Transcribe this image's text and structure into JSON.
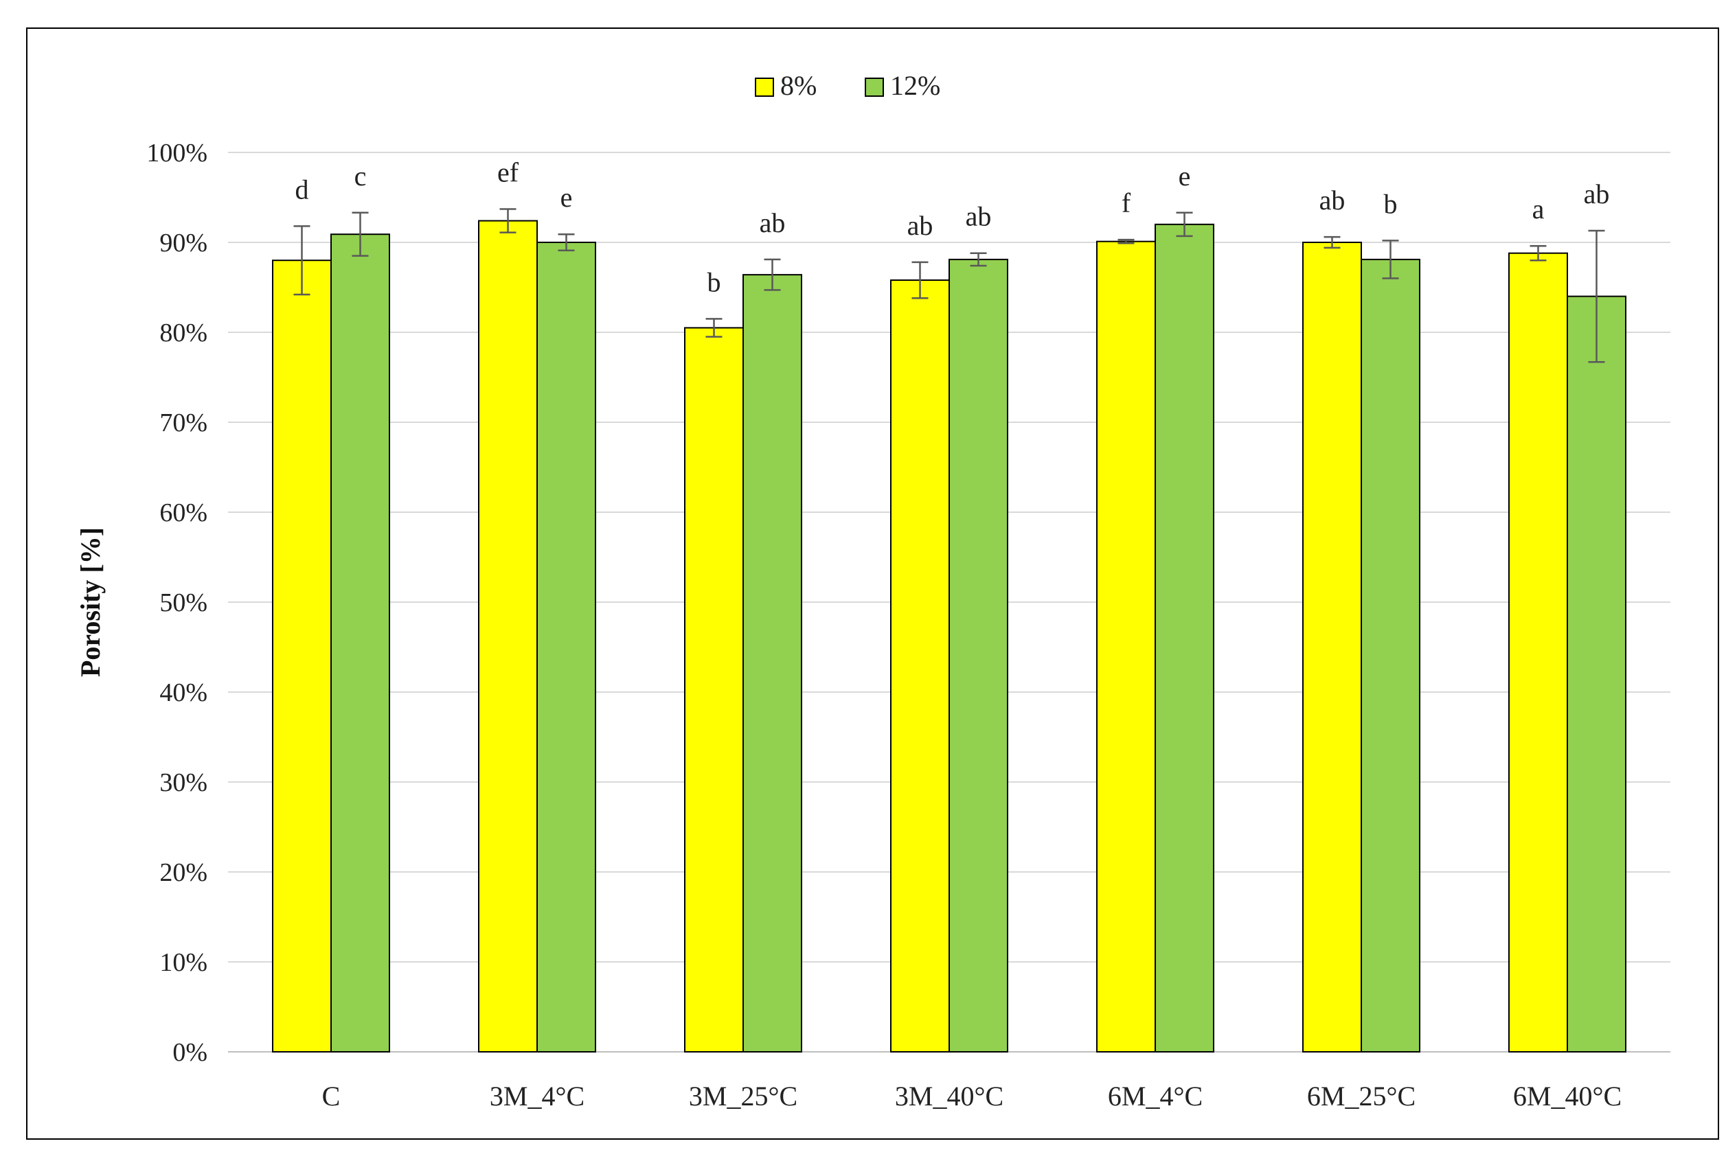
{
  "chart_data": {
    "type": "bar",
    "ylabel": "Porosity [%]",
    "xlabel": "",
    "ylim": [
      0,
      100
    ],
    "yticks": [
      "0%",
      "10%",
      "20%",
      "30%",
      "40%",
      "50%",
      "60%",
      "70%",
      "80%",
      "90%",
      "100%"
    ],
    "grid": true,
    "legend_position": "top-center",
    "categories": [
      "C",
      "3M_4°C",
      "3M_25°C",
      "3M_40°C",
      "6M_4°C",
      "6M_25°C",
      "6M_40°C"
    ],
    "series": [
      {
        "name": "8%",
        "color": "#FFFF00",
        "values": [
          88.0,
          92.4,
          80.5,
          85.8,
          90.1,
          90.0,
          88.8
        ],
        "errors": [
          3.8,
          1.3,
          1.0,
          2.0,
          0.2,
          0.6,
          0.8
        ],
        "letters": [
          "d",
          "ef",
          "b",
          "ab",
          "f",
          "ab",
          "a"
        ]
      },
      {
        "name": "12%",
        "color": "#92D050",
        "values": [
          90.9,
          90.0,
          86.4,
          88.1,
          92.0,
          88.1,
          84.0
        ],
        "errors": [
          2.4,
          0.9,
          1.7,
          0.7,
          1.3,
          2.1,
          7.3
        ],
        "letters": [
          "c",
          "e",
          "ab",
          "ab",
          "e",
          "b",
          "ab"
        ]
      }
    ]
  }
}
